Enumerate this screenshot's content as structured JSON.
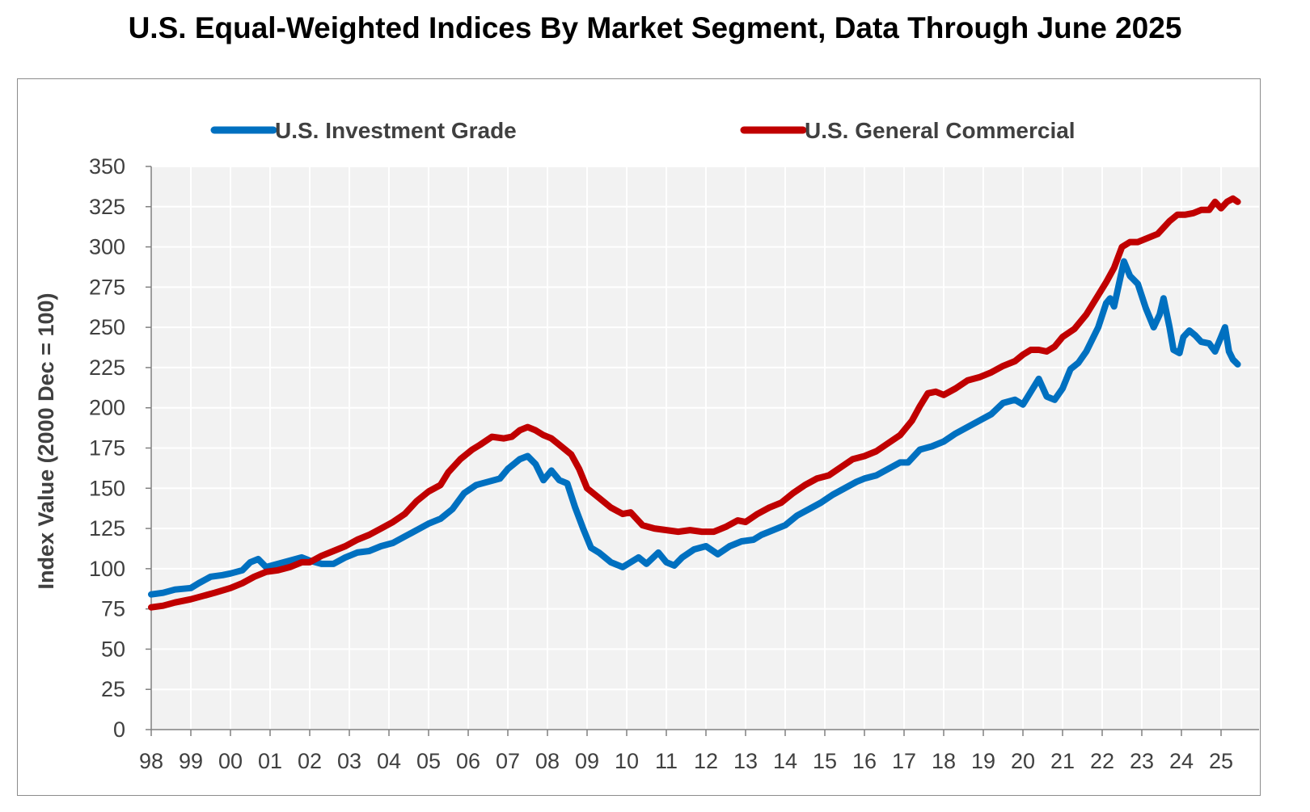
{
  "chart_data": {
    "type": "line",
    "title": "U.S. Equal-Weighted Indices By Market Segment, Data Through June 2025",
    "xlabel": "",
    "ylabel": "Index Value (2000 Dec = 100)",
    "ylim": [
      0,
      350
    ],
    "yticks": [
      0,
      25,
      50,
      75,
      100,
      125,
      150,
      175,
      200,
      225,
      250,
      275,
      300,
      325,
      350
    ],
    "xlim": [
      1998.0,
      2025.42
    ],
    "x_tick_labels": [
      "98",
      "99",
      "00",
      "01",
      "02",
      "03",
      "04",
      "05",
      "06",
      "07",
      "08",
      "09",
      "10",
      "11",
      "12",
      "13",
      "14",
      "15",
      "16",
      "17",
      "18",
      "19",
      "20",
      "21",
      "22",
      "23",
      "24",
      "25"
    ],
    "grid": true,
    "legend_position": "top",
    "series": [
      {
        "name": "U.S. Investment Grade",
        "color": "#0070C0",
        "points": [
          [
            1998.0,
            84
          ],
          [
            1998.3,
            85
          ],
          [
            1998.6,
            87
          ],
          [
            1999.0,
            88
          ],
          [
            1999.2,
            91
          ],
          [
            1999.5,
            95
          ],
          [
            1999.8,
            96
          ],
          [
            2000.0,
            97
          ],
          [
            2000.3,
            99
          ],
          [
            2000.5,
            104
          ],
          [
            2000.7,
            106
          ],
          [
            2000.9,
            101
          ],
          [
            2001.2,
            103
          ],
          [
            2001.5,
            105
          ],
          [
            2001.8,
            107
          ],
          [
            2002.0,
            105
          ],
          [
            2002.3,
            103
          ],
          [
            2002.6,
            103
          ],
          [
            2002.9,
            107
          ],
          [
            2003.2,
            110
          ],
          [
            2003.5,
            111
          ],
          [
            2003.8,
            114
          ],
          [
            2004.1,
            116
          ],
          [
            2004.4,
            120
          ],
          [
            2004.7,
            124
          ],
          [
            2005.0,
            128
          ],
          [
            2005.3,
            131
          ],
          [
            2005.6,
            137
          ],
          [
            2005.9,
            147
          ],
          [
            2006.2,
            152
          ],
          [
            2006.5,
            154
          ],
          [
            2006.8,
            156
          ],
          [
            2007.0,
            162
          ],
          [
            2007.3,
            168
          ],
          [
            2007.5,
            170
          ],
          [
            2007.7,
            165
          ],
          [
            2007.9,
            155
          ],
          [
            2008.1,
            161
          ],
          [
            2008.3,
            155
          ],
          [
            2008.5,
            153
          ],
          [
            2008.7,
            138
          ],
          [
            2008.9,
            125
          ],
          [
            2009.1,
            113
          ],
          [
            2009.3,
            110
          ],
          [
            2009.6,
            104
          ],
          [
            2009.9,
            101
          ],
          [
            2010.1,
            104
          ],
          [
            2010.3,
            107
          ],
          [
            2010.5,
            103
          ],
          [
            2010.8,
            110
          ],
          [
            2011.0,
            104
          ],
          [
            2011.2,
            102
          ],
          [
            2011.4,
            107
          ],
          [
            2011.7,
            112
          ],
          [
            2012.0,
            114
          ],
          [
            2012.3,
            109
          ],
          [
            2012.6,
            114
          ],
          [
            2012.9,
            117
          ],
          [
            2013.2,
            118
          ],
          [
            2013.4,
            121
          ],
          [
            2013.7,
            124
          ],
          [
            2014.0,
            127
          ],
          [
            2014.3,
            133
          ],
          [
            2014.6,
            137
          ],
          [
            2014.9,
            141
          ],
          [
            2015.2,
            146
          ],
          [
            2015.5,
            150
          ],
          [
            2015.8,
            154
          ],
          [
            2016.0,
            156
          ],
          [
            2016.3,
            158
          ],
          [
            2016.6,
            162
          ],
          [
            2016.9,
            166
          ],
          [
            2017.1,
            166
          ],
          [
            2017.4,
            174
          ],
          [
            2017.7,
            176
          ],
          [
            2018.0,
            179
          ],
          [
            2018.3,
            184
          ],
          [
            2018.6,
            188
          ],
          [
            2018.9,
            192
          ],
          [
            2019.2,
            196
          ],
          [
            2019.5,
            203
          ],
          [
            2019.8,
            205
          ],
          [
            2020.0,
            202
          ],
          [
            2020.2,
            210
          ],
          [
            2020.4,
            218
          ],
          [
            2020.6,
            207
          ],
          [
            2020.8,
            205
          ],
          [
            2021.0,
            212
          ],
          [
            2021.2,
            224
          ],
          [
            2021.4,
            228
          ],
          [
            2021.6,
            235
          ],
          [
            2021.9,
            250
          ],
          [
            2022.1,
            265
          ],
          [
            2022.2,
            268
          ],
          [
            2022.3,
            263
          ],
          [
            2022.45,
            280
          ],
          [
            2022.55,
            291
          ],
          [
            2022.7,
            282
          ],
          [
            2022.9,
            277
          ],
          [
            2023.1,
            262
          ],
          [
            2023.3,
            250
          ],
          [
            2023.45,
            258
          ],
          [
            2023.55,
            268
          ],
          [
            2023.7,
            250
          ],
          [
            2023.8,
            236
          ],
          [
            2023.95,
            234
          ],
          [
            2024.05,
            244
          ],
          [
            2024.2,
            248
          ],
          [
            2024.35,
            245
          ],
          [
            2024.5,
            241
          ],
          [
            2024.7,
            240
          ],
          [
            2024.85,
            235
          ],
          [
            2025.0,
            244
          ],
          [
            2025.1,
            250
          ],
          [
            2025.2,
            235
          ],
          [
            2025.3,
            230
          ],
          [
            2025.42,
            227
          ]
        ]
      },
      {
        "name": "U.S. General Commercial",
        "color": "#C00000",
        "points": [
          [
            1998.0,
            76
          ],
          [
            1998.3,
            77
          ],
          [
            1998.6,
            79
          ],
          [
            1999.0,
            81
          ],
          [
            1999.3,
            83
          ],
          [
            1999.6,
            85
          ],
          [
            2000.0,
            88
          ],
          [
            2000.3,
            91
          ],
          [
            2000.6,
            95
          ],
          [
            2000.9,
            98
          ],
          [
            2001.2,
            99
          ],
          [
            2001.5,
            101
          ],
          [
            2001.8,
            104
          ],
          [
            2002.0,
            104
          ],
          [
            2002.3,
            108
          ],
          [
            2002.6,
            111
          ],
          [
            2002.9,
            114
          ],
          [
            2003.2,
            118
          ],
          [
            2003.5,
            121
          ],
          [
            2003.8,
            125
          ],
          [
            2004.1,
            129
          ],
          [
            2004.4,
            134
          ],
          [
            2004.7,
            142
          ],
          [
            2005.0,
            148
          ],
          [
            2005.3,
            152
          ],
          [
            2005.5,
            160
          ],
          [
            2005.8,
            168
          ],
          [
            2006.1,
            174
          ],
          [
            2006.3,
            177
          ],
          [
            2006.6,
            182
          ],
          [
            2006.9,
            181
          ],
          [
            2007.1,
            182
          ],
          [
            2007.3,
            186
          ],
          [
            2007.5,
            188
          ],
          [
            2007.7,
            186
          ],
          [
            2007.9,
            183
          ],
          [
            2008.1,
            181
          ],
          [
            2008.3,
            177
          ],
          [
            2008.6,
            171
          ],
          [
            2008.8,
            162
          ],
          [
            2009.0,
            150
          ],
          [
            2009.3,
            144
          ],
          [
            2009.6,
            138
          ],
          [
            2009.9,
            134
          ],
          [
            2010.1,
            135
          ],
          [
            2010.4,
            127
          ],
          [
            2010.7,
            125
          ],
          [
            2011.0,
            124
          ],
          [
            2011.3,
            123
          ],
          [
            2011.6,
            124
          ],
          [
            2011.9,
            123
          ],
          [
            2012.2,
            123
          ],
          [
            2012.5,
            126
          ],
          [
            2012.8,
            130
          ],
          [
            2013.0,
            129
          ],
          [
            2013.3,
            134
          ],
          [
            2013.6,
            138
          ],
          [
            2013.9,
            141
          ],
          [
            2014.2,
            147
          ],
          [
            2014.5,
            152
          ],
          [
            2014.8,
            156
          ],
          [
            2015.1,
            158
          ],
          [
            2015.4,
            163
          ],
          [
            2015.7,
            168
          ],
          [
            2016.0,
            170
          ],
          [
            2016.3,
            173
          ],
          [
            2016.6,
            178
          ],
          [
            2016.9,
            183
          ],
          [
            2017.2,
            192
          ],
          [
            2017.4,
            201
          ],
          [
            2017.6,
            209
          ],
          [
            2017.8,
            210
          ],
          [
            2018.0,
            208
          ],
          [
            2018.3,
            212
          ],
          [
            2018.6,
            217
          ],
          [
            2018.9,
            219
          ],
          [
            2019.2,
            222
          ],
          [
            2019.5,
            226
          ],
          [
            2019.8,
            229
          ],
          [
            2020.0,
            233
          ],
          [
            2020.2,
            236
          ],
          [
            2020.4,
            236
          ],
          [
            2020.6,
            235
          ],
          [
            2020.8,
            238
          ],
          [
            2021.0,
            244
          ],
          [
            2021.3,
            249
          ],
          [
            2021.6,
            258
          ],
          [
            2021.9,
            270
          ],
          [
            2022.1,
            278
          ],
          [
            2022.3,
            287
          ],
          [
            2022.5,
            300
          ],
          [
            2022.7,
            303
          ],
          [
            2022.9,
            303
          ],
          [
            2023.1,
            305
          ],
          [
            2023.4,
            308
          ],
          [
            2023.7,
            316
          ],
          [
            2023.9,
            320
          ],
          [
            2024.1,
            320
          ],
          [
            2024.3,
            321
          ],
          [
            2024.5,
            323
          ],
          [
            2024.7,
            323
          ],
          [
            2024.85,
            328
          ],
          [
            2025.0,
            324
          ],
          [
            2025.15,
            328
          ],
          [
            2025.3,
            330
          ],
          [
            2025.42,
            328
          ]
        ]
      }
    ]
  },
  "colors": {
    "plot_background": "#F2F2F2",
    "gridline": "#FFFFFF",
    "axis": "#808080"
  }
}
